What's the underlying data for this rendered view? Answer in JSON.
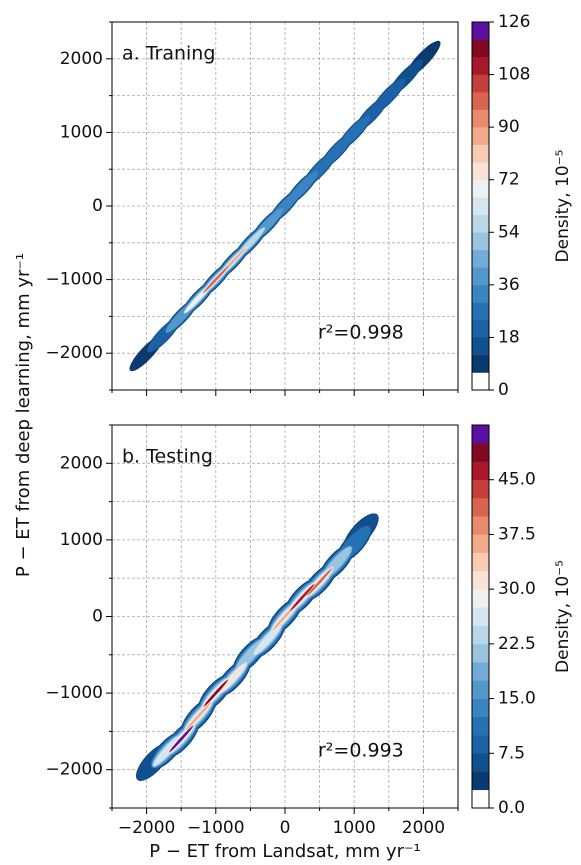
{
  "chart_data": [
    {
      "type": "density",
      "annotation": "a. Traning",
      "r2_label": "r²=0.998",
      "ylabel": "P − ET from deep learning, mm yr⁻¹",
      "xlim": [
        -2500,
        2500
      ],
      "ylim": [
        -2500,
        2500
      ],
      "xticks": [
        {
          "value": -2000,
          "label": "−2000"
        },
        {
          "value": -1000,
          "label": "−1000"
        },
        0,
        1000,
        2000
      ],
      "yticks": [
        {
          "value": -2000,
          "label": "−2000"
        },
        {
          "value": -1000,
          "label": "−1000"
        },
        0,
        1000,
        2000
      ],
      "xminorticks": [
        -2500,
        -1500,
        -500,
        500,
        1500,
        2500
      ],
      "yminorticks": [
        -2500,
        -1500,
        -500,
        500,
        1500,
        2500
      ],
      "show_xticklabels": false,
      "grid": true,
      "x": [
        -2000,
        -1750,
        -1500,
        -1250,
        -1000,
        -750,
        -500,
        -250,
        0,
        250,
        500,
        750,
        1000,
        1250,
        1500,
        1750,
        2000
      ],
      "y": [
        -2000,
        -1750,
        -1500,
        -1250,
        -1000,
        -750,
        -500,
        -250,
        0,
        250,
        500,
        750,
        1000,
        1250,
        1500,
        1750,
        2000
      ],
      "density": [
        8,
        20,
        40,
        70,
        100,
        85,
        55,
        40,
        35,
        30,
        28,
        26,
        24,
        22,
        20,
        16,
        8
      ],
      "colorbar_label": "Density, 10⁻⁵",
      "clim": [
        0,
        126
      ],
      "cticks": [
        0,
        18,
        36,
        54,
        72,
        90,
        108,
        126
      ],
      "colormap": [
        "#ffffff",
        "#0a3a6e",
        "#10508f",
        "#1a62a5",
        "#2671b4",
        "#3a84c0",
        "#5298cb",
        "#72acd6",
        "#98c4e0",
        "#bad7ea",
        "#d6e6f1",
        "#eef0f2",
        "#f8e3d6",
        "#f8cbb2",
        "#f2ab8a",
        "#e88a6b",
        "#d7644f",
        "#c43f3a",
        "#a8182a",
        "#7f0a22",
        "#5a0fa0"
      ]
    },
    {
      "type": "density",
      "annotation": "b. Testing",
      "r2_label": "r²=0.993",
      "xlabel": "P − ET from Landsat, mm yr⁻¹",
      "xlim": [
        -2500,
        2500
      ],
      "ylim": [
        -2500,
        2500
      ],
      "xticks": [
        {
          "value": -2000,
          "label": "−2000"
        },
        {
          "value": -1000,
          "label": "−1000"
        },
        0,
        1000,
        2000
      ],
      "yticks": [
        {
          "value": -2000,
          "label": "−2000"
        },
        {
          "value": -1000,
          "label": "−1000"
        },
        0,
        1000,
        2000
      ],
      "xminorticks": [
        -2500,
        -1500,
        -500,
        500,
        1500,
        2500
      ],
      "yminorticks": [
        -2500,
        -1500,
        -500,
        500,
        1500,
        2500
      ],
      "show_xticklabels": true,
      "grid": true,
      "x": [
        -1900,
        -1700,
        -1500,
        -1250,
        -1000,
        -750,
        -500,
        -250,
        0,
        250,
        500,
        750,
        1000,
        1100
      ],
      "y": [
        -1900,
        -1750,
        -1600,
        -1300,
        -1000,
        -800,
        -500,
        -300,
        0,
        250,
        450,
        700,
        950,
        1100
      ],
      "density": [
        6,
        25,
        50,
        35,
        48,
        30,
        22,
        25,
        35,
        45,
        40,
        20,
        12,
        6
      ],
      "colorbar_label": "Density, 10⁻⁵",
      "clim": [
        0,
        52.5
      ],
      "cticks": [
        {
          "value": 0,
          "label": "0.0"
        },
        7.5,
        {
          "value": 15,
          "label": "15.0"
        },
        22.5,
        {
          "value": 30,
          "label": "30.0"
        },
        37.5,
        {
          "value": 45,
          "label": "45.0"
        }
      ],
      "colormap": [
        "#ffffff",
        "#0a3a6e",
        "#10508f",
        "#1a62a5",
        "#2671b4",
        "#3a84c0",
        "#5298cb",
        "#72acd6",
        "#98c4e0",
        "#bad7ea",
        "#d6e6f1",
        "#eef0f2",
        "#f8e3d6",
        "#f8cbb2",
        "#f2ab8a",
        "#e88a6b",
        "#d7644f",
        "#c43f3a",
        "#a8182a",
        "#7f0a22",
        "#5a0fa0"
      ]
    }
  ]
}
